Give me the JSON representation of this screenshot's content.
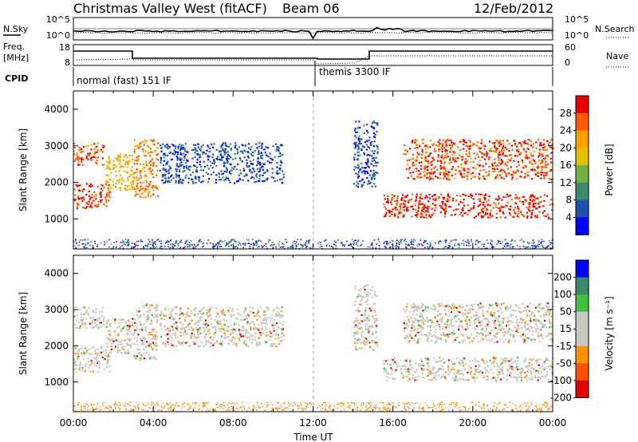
{
  "header": {
    "title": "Christmas Valley West (fitACF)",
    "beam": "Beam 06",
    "date": "12/Feb/2012"
  },
  "status_panels": {
    "nsky_label": "N.Sky",
    "nsky_ticks": [
      "10^5",
      "10^0"
    ],
    "nsearch_label": "N.Search",
    "nsearch_ticks": [
      "10^5",
      "10^0"
    ],
    "freq_label": "Freq.",
    "freq_unit": "[MHz]",
    "freq_ticks": [
      "18",
      "8"
    ],
    "nave_label": "Nave",
    "nave_ticks": [
      "60",
      "0"
    ],
    "cpid_label": "CPID",
    "modes": [
      "normal (fast) 151 IF",
      "themis 3300 IF"
    ]
  },
  "chart_data": [
    {
      "type": "heatmap",
      "name": "power",
      "xlabel": "",
      "ylabel": "Slant Range [km]",
      "xlim": [
        0,
        24
      ],
      "ylim": [
        180,
        4500
      ],
      "y_ticks": [
        "1000",
        "2000",
        "3000",
        "4000"
      ],
      "colorbar": {
        "label": "Power [dB]",
        "ticks": [
          "28",
          "24",
          "20",
          "16",
          "12",
          "8",
          "4"
        ],
        "colors": [
          "#e60000",
          "#ff5a00",
          "#ffa000",
          "#e0c000",
          "#70b040",
          "#3a8a6a",
          "#2050b0",
          "#0000ff"
        ]
      },
      "echo_bands": [
        {
          "t": [
            0.0,
            1.8
          ],
          "r": [
            1300,
            2000
          ],
          "db": 28
        },
        {
          "t": [
            0.0,
            1.5
          ],
          "r": [
            2500,
            3100
          ],
          "db": 27
        },
        {
          "t": [
            1.6,
            3.0
          ],
          "r": [
            1800,
            2800
          ],
          "db": 20
        },
        {
          "t": [
            3.0,
            4.2
          ],
          "r": [
            1600,
            3200
          ],
          "db": 24
        },
        {
          "t": [
            4.3,
            10.5
          ],
          "r": [
            2000,
            3100
          ],
          "db": 6
        },
        {
          "t": [
            14.0,
            15.2
          ],
          "r": [
            1900,
            3700
          ],
          "db": 5
        },
        {
          "t": [
            15.5,
            24.0
          ],
          "r": [
            1050,
            1700
          ],
          "db": 29
        },
        {
          "t": [
            16.5,
            24.0
          ],
          "r": [
            2100,
            3200
          ],
          "db": 27
        }
      ]
    },
    {
      "type": "heatmap",
      "name": "velocity",
      "xlabel": "Time UT",
      "ylabel": "Slant Range [km]",
      "xlim": [
        0,
        24
      ],
      "ylim": [
        180,
        4500
      ],
      "x_ticks": [
        "00:00",
        "04:00",
        "08:00",
        "12:00",
        "16:00",
        "20:00",
        "00:00"
      ],
      "y_ticks": [
        "1000",
        "2000",
        "3000",
        "4000"
      ],
      "colorbar": {
        "label": "Velocity [m s⁻¹]",
        "ticks": [
          "200",
          "100",
          "50",
          "15",
          "-15",
          "-50",
          "-100",
          "-200"
        ],
        "colors": [
          "#0000ff",
          "#3a8a6a",
          "#40c040",
          "#c8c8c0",
          "#c8c8c0",
          "#ff9000",
          "#ff5000",
          "#e00000"
        ]
      }
    }
  ]
}
